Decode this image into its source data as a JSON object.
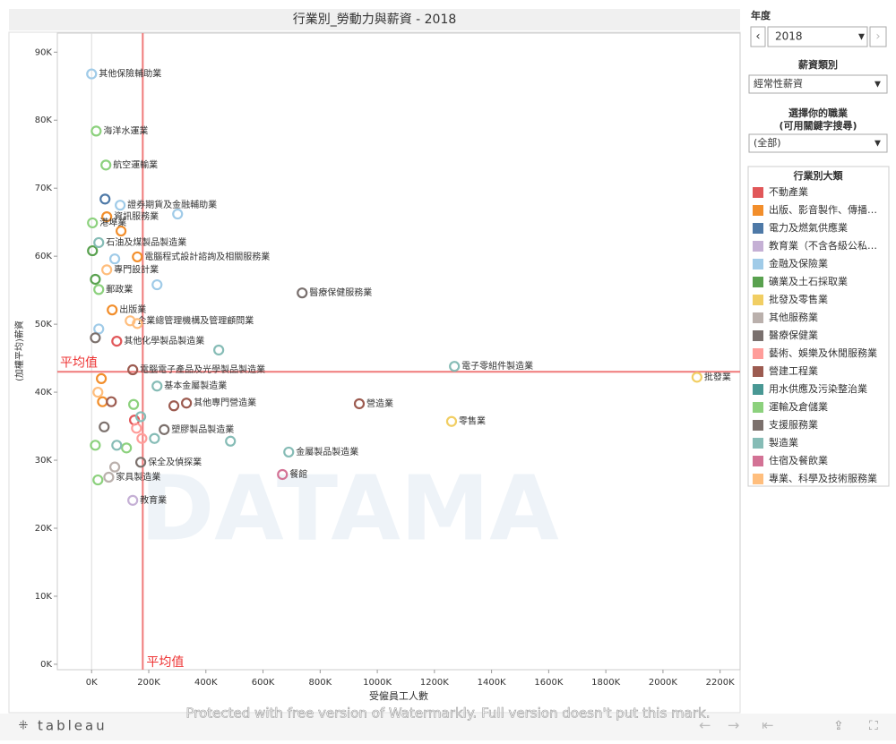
{
  "chart_data": {
    "type": "scatter",
    "title": "行業別_勞動力與薪資 - 2018",
    "x_label": "受僱員工人數",
    "y_label": "(加權平均)薪資",
    "xlim": [
      -120000,
      2270000
    ],
    "ylim": [
      -800,
      92800
    ],
    "xticks": [
      {
        "value": 0,
        "label": "0K"
      },
      {
        "value": 200000,
        "label": "200K"
      },
      {
        "value": 400000,
        "label": "400K"
      },
      {
        "value": 600000,
        "label": "600K"
      },
      {
        "value": 800000,
        "label": "800K"
      },
      {
        "value": 1000000,
        "label": "1000K"
      },
      {
        "value": 1200000,
        "label": "1200K"
      },
      {
        "value": 1400000,
        "label": "1400K"
      },
      {
        "value": 1600000,
        "label": "1600K"
      },
      {
        "value": 1800000,
        "label": "1800K"
      },
      {
        "value": 2000000,
        "label": "2000K"
      },
      {
        "value": 2200000,
        "label": "2200K"
      }
    ],
    "yticks": [
      {
        "value": 0,
        "label": "0K"
      },
      {
        "value": 10000,
        "label": "10K"
      },
      {
        "value": 20000,
        "label": "20K"
      },
      {
        "value": 30000,
        "label": "30K"
      },
      {
        "value": 40000,
        "label": "40K"
      },
      {
        "value": 50000,
        "label": "50K"
      },
      {
        "value": 60000,
        "label": "60K"
      },
      {
        "value": 70000,
        "label": "70K"
      },
      {
        "value": 80000,
        "label": "80K"
      },
      {
        "value": 90000,
        "label": "90K"
      }
    ],
    "x_reference": {
      "value": 179000,
      "label": "平均值"
    },
    "y_reference": {
      "value": 43000,
      "label": "平均值"
    },
    "reference_color": "#f07a7a",
    "legend_title": "行業別大類",
    "series": [
      {
        "name": "不動產業",
        "color": "#e15759",
        "x": [
          88000,
          150000
        ],
        "values": [
          47500,
          35900
        ],
        "labels": [
          "其他化學製品製造業",
          null
        ]
      },
      {
        "name": "出版、影音製作、傳播…",
        "color": "#f28e2b",
        "x": [
          53000,
          103000,
          160000,
          72000,
          34000,
          38000
        ],
        "values": [
          65800,
          63700,
          59900,
          52100,
          42000,
          38600
        ],
        "labels": [
          "資訊服務業",
          null,
          "電腦程式設計諮詢及相關服務業",
          "出版業",
          null,
          null
        ]
      },
      {
        "name": "電力及燃氣供應業",
        "color": "#4e79a7",
        "x": [
          47000
        ],
        "values": [
          68400
        ]
      },
      {
        "name": "教育業（不含各級公私…",
        "color": "#c5b0d5",
        "x": [
          144000
        ],
        "values": [
          24100
        ],
        "labels": [
          "教育業"
        ]
      },
      {
        "name": "金融及保險業",
        "color": "#a0cbe8",
        "x": [
          0,
          100000,
          301000,
          81000,
          229000,
          25000
        ],
        "values": [
          86800,
          67500,
          66200,
          59600,
          55800,
          49300
        ],
        "labels": [
          "其他保險輔助業",
          "證券期貨及金融輔助業",
          null,
          null,
          null,
          null
        ]
      },
      {
        "name": "礦業及土石採取業",
        "color": "#59a14f",
        "x": [
          3000,
          13000
        ],
        "values": [
          60800,
          56600
        ]
      },
      {
        "name": "批發及零售業",
        "color": "#f1ce63",
        "x": [
          2119000,
          1260000
        ],
        "values": [
          42200,
          35700
        ],
        "labels": [
          "批發業",
          "零售業"
        ]
      },
      {
        "name": "其他服務業",
        "color": "#bab0ac",
        "x": [
          60000,
          81000
        ],
        "values": [
          27500,
          29000
        ],
        "labels": [
          "家具製造業",
          null
        ]
      },
      {
        "name": "醫療保健業",
        "color": "#79706e",
        "x": [
          737000
        ],
        "values": [
          54600
        ],
        "labels": [
          "醫療保健服務業"
        ]
      },
      {
        "name": "藝術、娛樂及休閒服務業",
        "color": "#ff9d9a",
        "x": [
          157000,
          176000
        ],
        "values": [
          34700,
          33200
        ]
      },
      {
        "name": "營建工程業",
        "color": "#9c5b50",
        "x": [
          144000,
          332000,
          288000,
          937000,
          69000
        ],
        "values": [
          43300,
          38400,
          38000,
          38300,
          38600
        ],
        "labels": [
          "電腦電子產品及光學製品製造業",
          "其他專門營造業",
          null,
          "營造業",
          null
        ]
      },
      {
        "name": "用水供應及污染整治業",
        "color": "#499894",
        "x": [],
        "values": []
      },
      {
        "name": "運輸及倉儲業",
        "color": "#8cd17d",
        "x": [
          16000,
          50000,
          3000,
          25000,
          147000,
          13000,
          22000,
          122000
        ],
        "values": [
          78400,
          73400,
          64900,
          55100,
          38200,
          32200,
          27100,
          31800
        ],
        "labels": [
          "海洋水運業",
          "航空運輸業",
          "港埠業",
          "郵政業",
          null,
          null,
          null,
          null
        ]
      },
      {
        "name": "支援服務業",
        "color": "#7b706c",
        "x": [
          13000,
          254000,
          172000,
          44000
        ],
        "values": [
          48000,
          34500,
          29700,
          34900
        ],
        "labels": [
          null,
          "塑膠製品製造業",
          "保全及偵探業",
          null
        ]
      },
      {
        "name": "製造業",
        "color": "#86bcb6",
        "x": [
          25000,
          445000,
          1270000,
          229000,
          690000,
          220000,
          486000,
          88000,
          172000
        ],
        "values": [
          62000,
          46200,
          43800,
          40900,
          31200,
          33200,
          32800,
          32200,
          36400
        ],
        "labels": [
          "石油及煤製品製造業",
          null,
          "電子零組件製造業",
          "基本金屬製造業",
          "金屬製品製造業",
          null,
          null,
          null,
          null
        ]
      },
      {
        "name": "住宿及餐飲業",
        "color": "#d37295",
        "x": [
          668000
        ],
        "values": [
          27900
        ],
        "labels": [
          "餐館"
        ]
      },
      {
        "name": "專業、科學及技術服務業",
        "color": "#ffbe7d",
        "x": [
          53000,
          135000,
          160000,
          22000
        ],
        "values": [
          58000,
          50500,
          50100,
          40000
        ],
        "labels": [
          "專門設計業",
          "企業總管理機構及管理顧問業",
          null,
          null
        ]
      }
    ]
  },
  "filters": {
    "year_label": "年度",
    "year": "2018",
    "wage_label": "薪資類別",
    "wage": "經常性薪資",
    "job_label": "選擇你的職業",
    "job_hint": "(可用關鍵字搜尋)",
    "job": "(全部)"
  },
  "footer": {
    "logo": "tableau",
    "watermark": "Protected with free version of Watermarkly. Full version doesn't put this mark.",
    "background_mark": "DATAMA"
  }
}
